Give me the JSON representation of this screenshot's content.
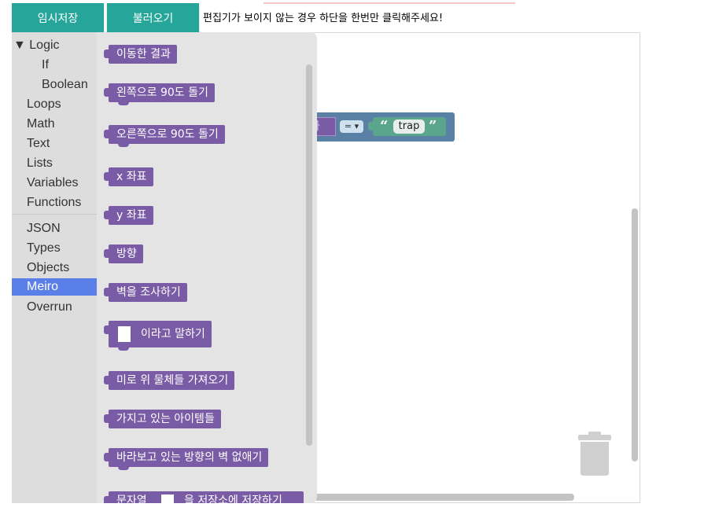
{
  "toolbar": {
    "save_label": "임시저장",
    "load_label": "불러오기",
    "notice": "편집기가 보이지 않는 경우 하단을 한번만 클릭해주세요!"
  },
  "toolbox": {
    "categories": [
      "▼ Logic",
      "If",
      "Boolean",
      "Loops",
      "Math",
      "Text",
      "Lists",
      "Variables",
      "Functions",
      "JSON",
      "Types",
      "Objects",
      "Meiro",
      "Overrun"
    ],
    "selected": "Meiro"
  },
  "flyout": {
    "blocks": [
      "이동한 결과",
      "왼쪽으로 90도 돌기",
      "오른쪽으로 90도 돌기",
      "x 좌표",
      "y 좌표",
      "방향",
      "벽을 조사하기",
      "이라고 말하기",
      "미로 위 물체들 가져오기",
      "가지고 있는 아이템들",
      "바라보고 있는 방향의 벽 없애기",
      "문자열",
      "을 저장소에 저장하기"
    ]
  },
  "workspace": {
    "compare_left": "이동한 결과",
    "operator": "= ▾",
    "quote_open": "“",
    "string_value": "trap",
    "quote_close": "”"
  },
  "colors": {
    "button": "#26a69a",
    "looks_block": "#7a5ba6",
    "logic_block": "#5b80a5",
    "text_block": "#5ba58c",
    "selected_category": "#5b7fe8"
  }
}
